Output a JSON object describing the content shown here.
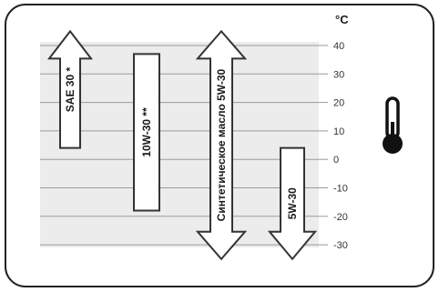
{
  "unit": "°C",
  "ticks": [
    "40",
    "30",
    "20",
    "10",
    "0",
    "-10",
    "-20",
    "-30"
  ],
  "bands": [
    {
      "label": "SAE 30 *",
      "shape": "arrow-up",
      "top": 45,
      "bottom": 4
    },
    {
      "label": "10W-30 **",
      "shape": "bar",
      "top": 37,
      "bottom": -18
    },
    {
      "label": "Синтетическое масло 5W-30",
      "shape": "arrow-both",
      "top": 45,
      "bottom": -35
    },
    {
      "label": "5W-30",
      "shape": "arrow-down",
      "top": 4,
      "bottom": -35
    }
  ],
  "icons": {
    "thermometer": "thermometer-icon"
  },
  "colors": {
    "grid_band": "#ebebeb",
    "line": "#9a9a9a",
    "outline": "#333333"
  }
}
